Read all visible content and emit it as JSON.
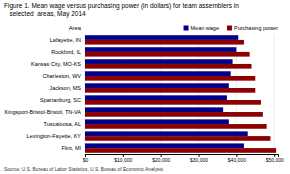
{
  "chart_data": {
    "type": "bar",
    "orientation": "horizontal",
    "title": "Figure 1. Mean wage versus purchasing power (in dollars) for team assemblers in",
    "subtitle": "   selected  areas, May 2014",
    "ylabel": "Area",
    "annotations": [
      {
        "text": "Source: U.S. Bureau of Labor Statistics, U.S. Bureau of Economic Analysis."
      }
    ],
    "categories": [
      "Lafayette, IN",
      "Rockford, IL",
      "Kansas City, MO-KS",
      "Charleston, WV",
      "Jackson, MS",
      "Spartanburg, SC",
      "Kingsport-Bristol-Bristol, TN-VA",
      "Tuscaloosa, AL",
      "Lexington-Fayette, KY",
      "Flint, MI"
    ],
    "series": [
      {
        "name": "Mean wage",
        "color": "#00008B",
        "values": [
          40500,
          40000,
          39000,
          38500,
          38000,
          37500,
          36500,
          38000,
          43000,
          42000
        ]
      },
      {
        "name": "Purchasing power",
        "color": "#8B0000",
        "values": [
          42000,
          43500,
          44000,
          45000,
          45000,
          46500,
          47000,
          48000,
          49000,
          50500
        ]
      }
    ],
    "xlim": [
      0,
      51000
    ],
    "xticks": [
      {
        "value": 0,
        "label": "$0"
      },
      {
        "value": 10000,
        "label": "$10,000"
      },
      {
        "value": 20000,
        "label": "$20,000"
      },
      {
        "value": 30000,
        "label": "$30,000"
      },
      {
        "value": 40000,
        "label": "$40,000"
      },
      {
        "value": 50000,
        "label": "$50,000"
      }
    ],
    "grid": true,
    "legend": "top-right"
  }
}
